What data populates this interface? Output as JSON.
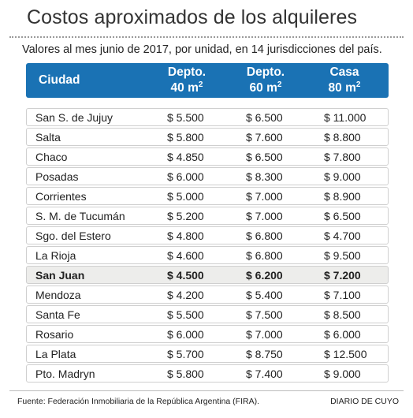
{
  "title": "Costos aproximados de los alquileres",
  "subtitle": "Valores al mes junio de 2017, por unidad, en 14 jurisdicciones del país.",
  "header": {
    "city": "Ciudad",
    "col1_line1": "Depto.",
    "col1_line2": "40 m",
    "col2_line1": "Depto.",
    "col2_line2": "60 m",
    "col3_line1": "Casa",
    "col3_line2": "80 m",
    "sup": "2",
    "bg_color": "#1a72b4"
  },
  "rows": [
    {
      "city": "San S. de Jujuy",
      "d40": "$ 5.500",
      "d60": "$ 6.500",
      "c80": "$ 11.000"
    },
    {
      "city": "Salta",
      "d40": "$ 5.800",
      "d60": "$ 7.600",
      "c80": "$ 8.800"
    },
    {
      "city": "Chaco",
      "d40": "$ 4.850",
      "d60": "$ 6.500",
      "c80": "$ 7.800"
    },
    {
      "city": "Posadas",
      "d40": "$ 6.000",
      "d60": "$ 8.300",
      "c80": "$ 9.000"
    },
    {
      "city": "Corrientes",
      "d40": "$ 5.000",
      "d60": "$ 7.000",
      "c80": "$ 8.900"
    },
    {
      "city": "S. M. de Tucumán",
      "d40": "$ 5.200",
      "d60": "$ 7.000",
      "c80": "$ 6.500"
    },
    {
      "city": "Sgo. del Estero",
      "d40": "$ 4.800",
      "d60": "$ 6.800",
      "c80": "$ 4.700"
    },
    {
      "city": "La Rioja",
      "d40": "$ 4.600",
      "d60": "$ 6.800",
      "c80": "$ 9.500"
    },
    {
      "city": "San Juan",
      "d40": "$ 4.500",
      "d60": "$ 6.200",
      "c80": "$ 7.200",
      "highlight": true
    },
    {
      "city": "Mendoza",
      "d40": "$ 4.200",
      "d60": "$ 5.400",
      "c80": "$ 7.100"
    },
    {
      "city": "Santa Fe",
      "d40": "$ 5.500",
      "d60": "$ 7.500",
      "c80": "$ 8.500"
    },
    {
      "city": "Rosario",
      "d40": "$ 6.000",
      "d60": "$ 7.000",
      "c80": "$ 6.000"
    },
    {
      "city": "La Plata",
      "d40": "$ 5.700",
      "d60": "$ 8.750",
      "c80": "$ 12.500"
    },
    {
      "city": "Pto. Madryn",
      "d40": "$ 5.800",
      "d60": "$ 7.400",
      "c80": "$ 9.000"
    }
  ],
  "footer": {
    "source": "Fuente: Federación Inmobiliaria de la República Argentina (FIRA).",
    "brand": "DIARIO DE CUYO"
  }
}
